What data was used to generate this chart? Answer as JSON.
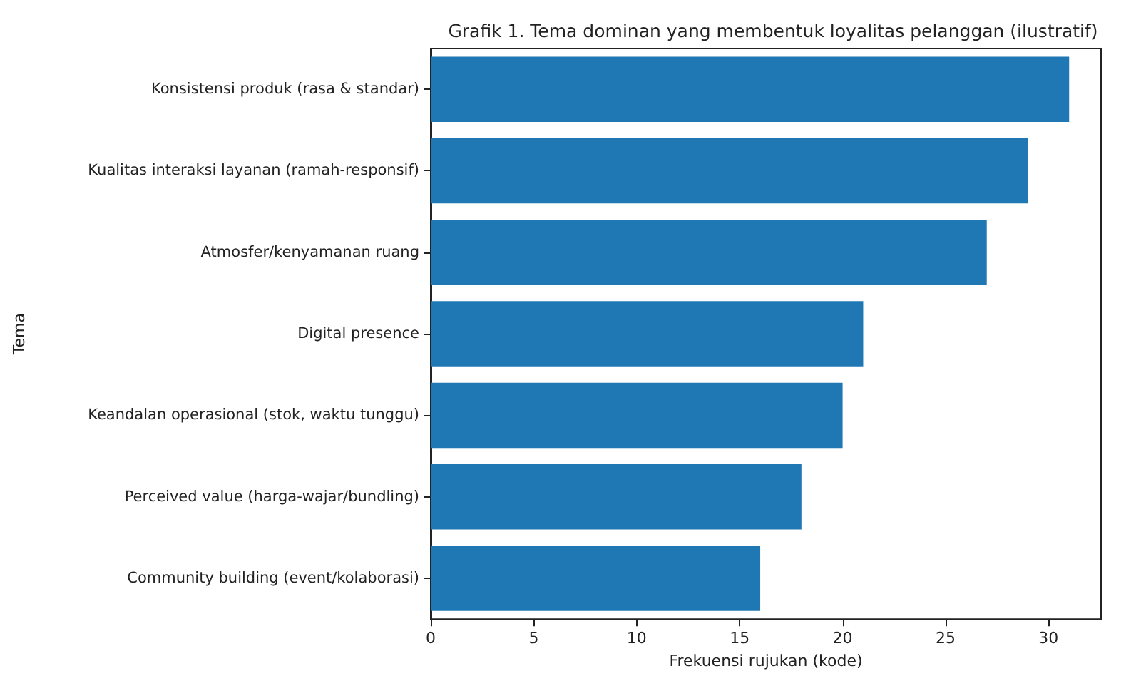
{
  "chart_data": {
    "type": "bar",
    "orientation": "horizontal",
    "title": "Grafik 1. Tema dominan yang membentuk loyalitas pelanggan (ilustratif)",
    "xlabel": "Frekuensi rujukan (kode)",
    "ylabel": "Tema",
    "categories": [
      "Konsistensi produk (rasa & standar)",
      "Kualitas interaksi layanan (ramah-responsif)",
      "Atmosfer/kenyamanan ruang",
      "Digital presence",
      "Keandalan operasional (stok, waktu tunggu)",
      "Perceived value (harga-wajar/bundling)",
      "Community building (event/kolaborasi)"
    ],
    "values": [
      31,
      29,
      27,
      21,
      20,
      18,
      16
    ],
    "color": "#1f77b4",
    "xlim": [
      0,
      32.55
    ],
    "xticks": [
      0,
      5,
      10,
      15,
      20,
      25,
      30
    ]
  }
}
